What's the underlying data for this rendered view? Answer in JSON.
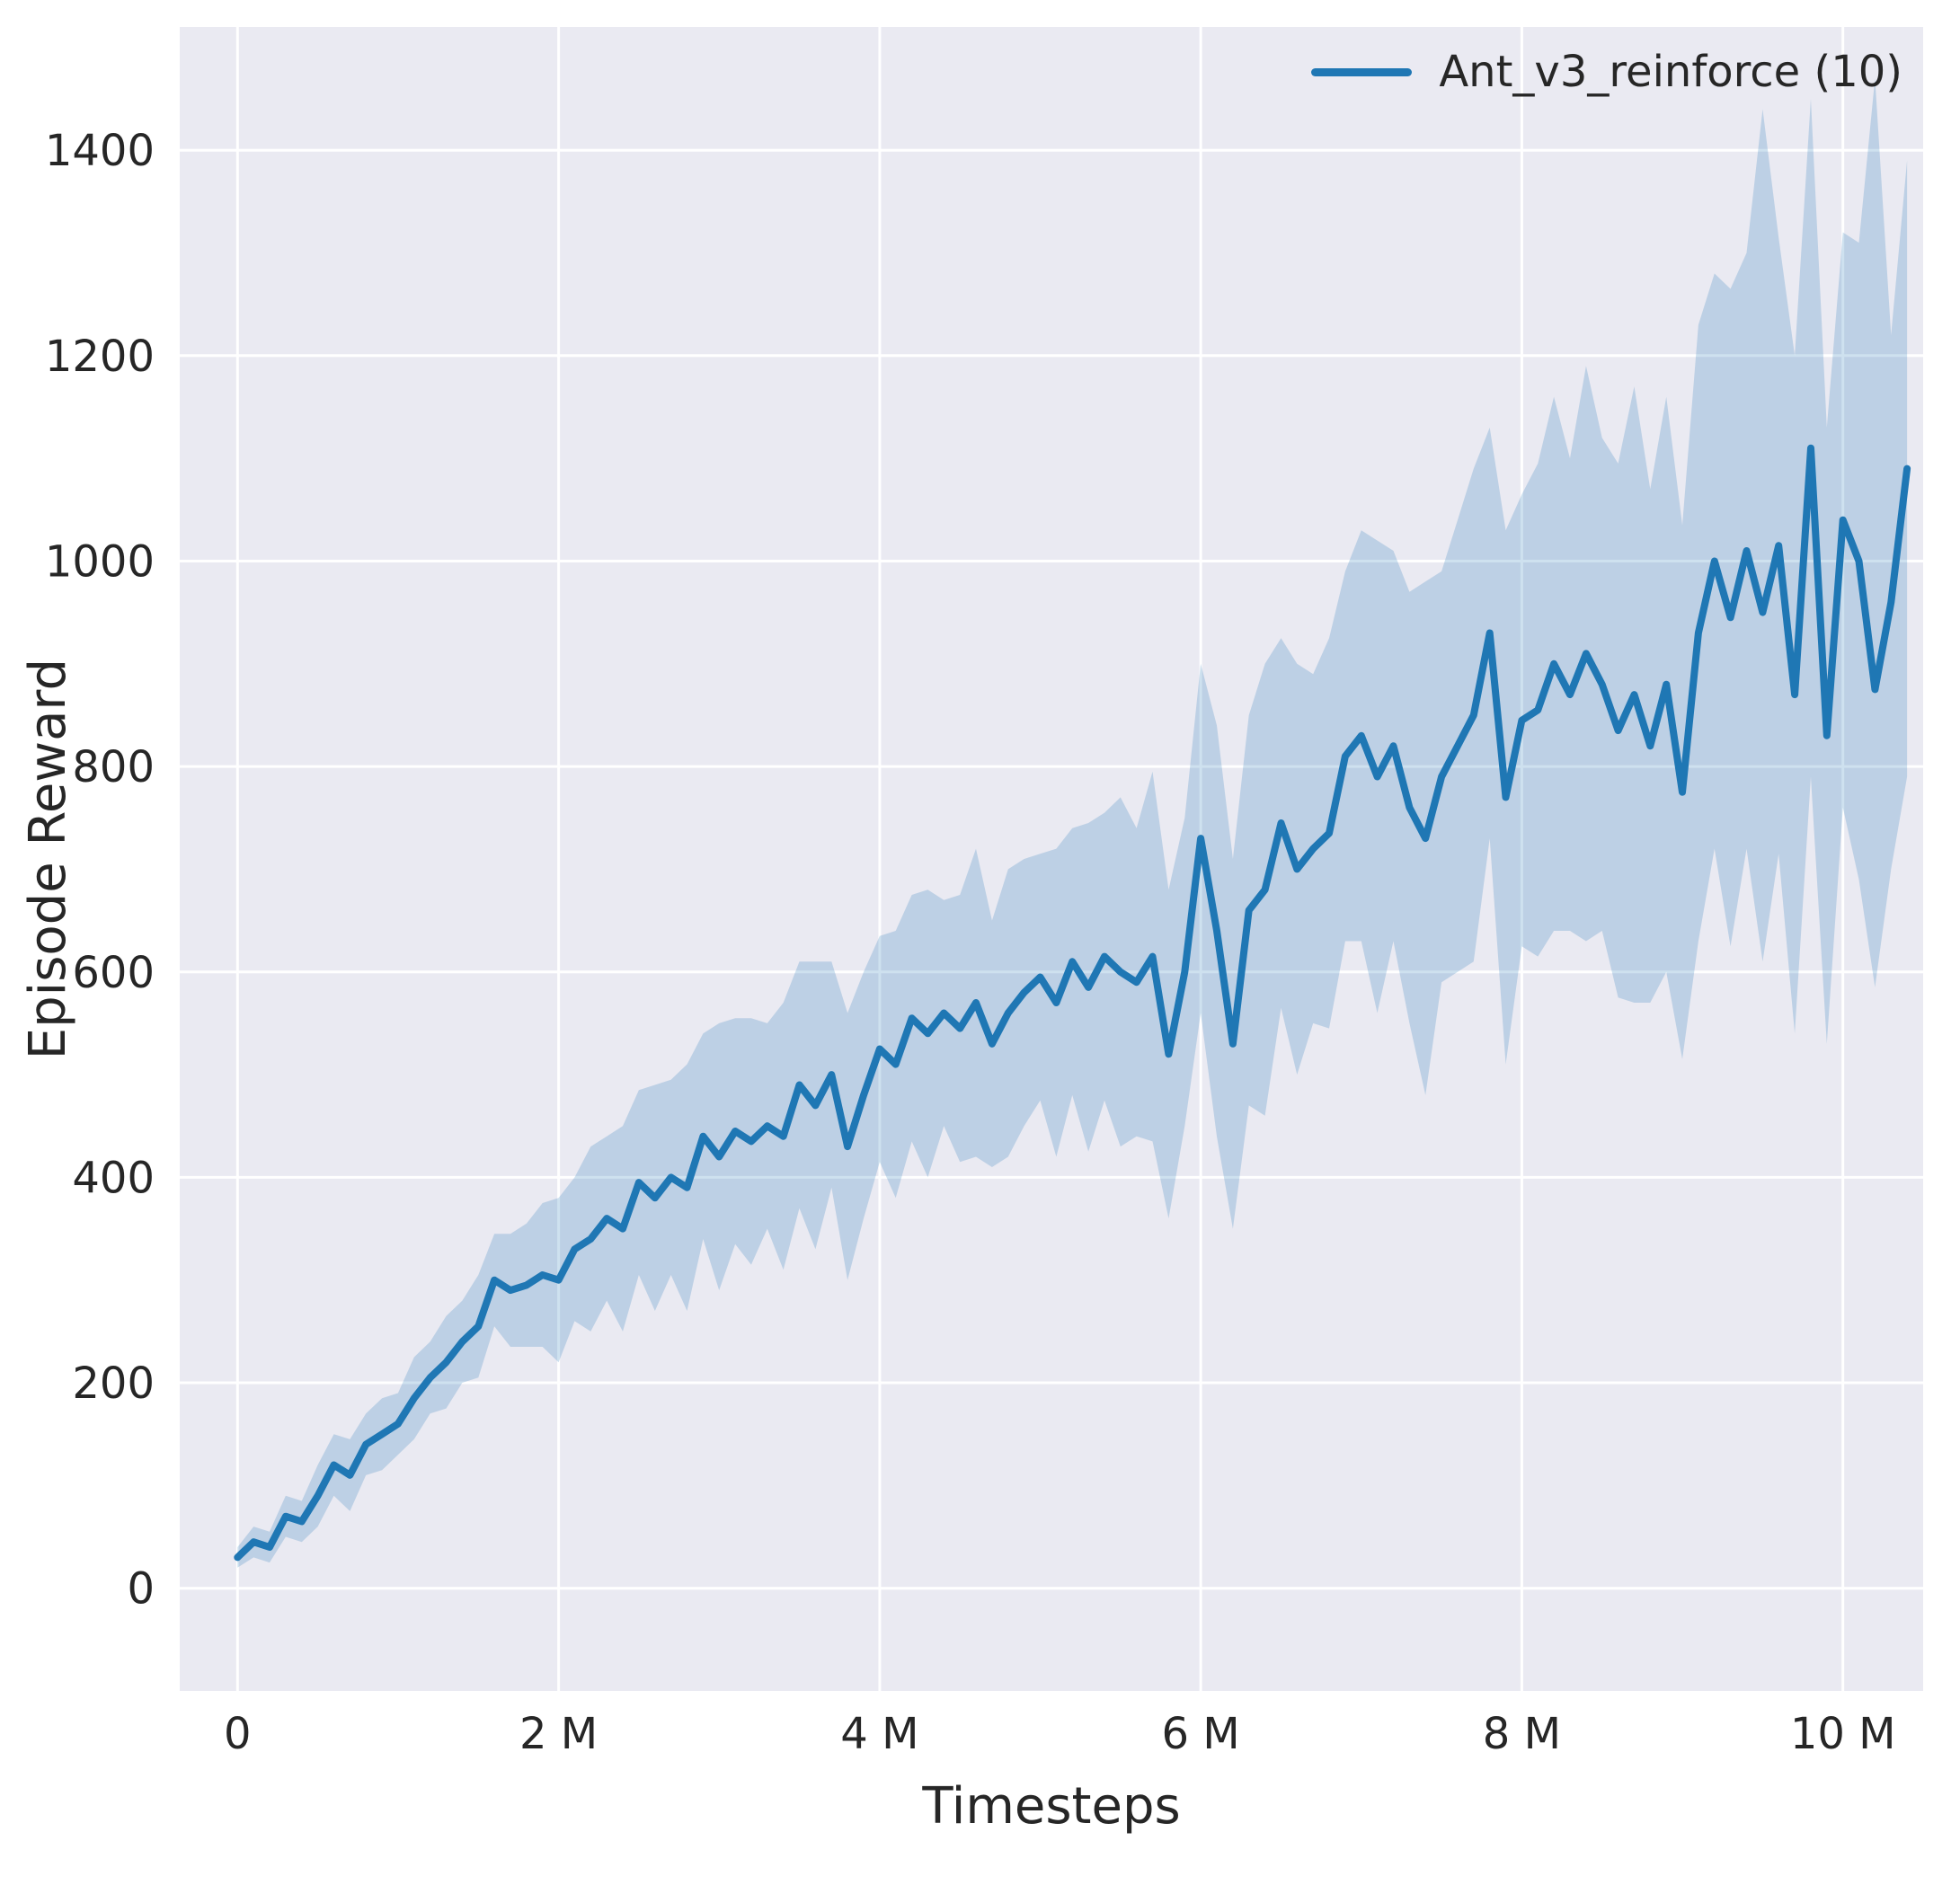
{
  "chart_data": {
    "type": "line",
    "title": "",
    "xlabel": "Timesteps",
    "ylabel": "Episode Reward",
    "grid": true,
    "legend": {
      "position": "upper right",
      "entries": [
        "Ant_v3_reinforce (10)"
      ]
    },
    "panel_color": "#eaeaf2",
    "grid_color": "#ffffff",
    "text_color": "#262626",
    "xlim": [
      -0.36,
      10.5
    ],
    "ylim": [
      -100,
      1520
    ],
    "x_ticks": {
      "values": [
        0,
        2,
        4,
        6,
        8,
        10
      ],
      "labels": [
        "0",
        "2 M",
        "4 M",
        "6 M",
        "8 M",
        "10 M"
      ]
    },
    "y_ticks": {
      "values": [
        0,
        200,
        400,
        600,
        800,
        1000,
        1200,
        1400
      ],
      "labels": [
        "0",
        "200",
        "400",
        "600",
        "800",
        "1000",
        "1200",
        "1400"
      ]
    },
    "series": [
      {
        "name": "Ant_v3_reinforce (10)",
        "color": "#1f77b4",
        "band_color": "#1f77b4",
        "band_opacity": 0.22,
        "x": [
          0,
          0.1,
          0.2,
          0.3,
          0.4,
          0.5,
          0.6,
          0.7,
          0.8,
          0.9,
          1,
          1.1,
          1.2,
          1.3,
          1.4,
          1.5,
          1.6,
          1.7,
          1.8,
          1.9,
          2,
          2.1,
          2.2,
          2.3,
          2.4,
          2.5,
          2.6,
          2.7,
          2.8,
          2.9,
          3,
          3.1,
          3.2,
          3.3,
          3.4,
          3.5,
          3.6,
          3.7,
          3.8,
          3.9,
          4,
          4.1,
          4.2,
          4.3,
          4.4,
          4.5,
          4.6,
          4.7,
          4.8,
          4.9,
          5,
          5.1,
          5.2,
          5.3,
          5.4,
          5.5,
          5.6,
          5.7,
          5.8,
          5.9,
          6,
          6.1,
          6.2,
          6.3,
          6.4,
          6.5,
          6.6,
          6.7,
          6.8,
          6.9,
          7,
          7.1,
          7.2,
          7.3,
          7.4,
          7.5,
          7.6,
          7.7,
          7.8,
          7.9,
          8,
          8.1,
          8.2,
          8.3,
          8.4,
          8.5,
          8.6,
          8.7,
          8.8,
          8.9,
          9,
          9.1,
          9.2,
          9.3,
          9.4,
          9.5,
          9.6,
          9.7,
          9.8,
          9.9,
          10,
          10.1,
          10.2,
          10.3,
          10.4
        ],
        "mean": [
          30,
          45,
          40,
          70,
          65,
          90,
          120,
          110,
          140,
          150,
          160,
          185,
          205,
          220,
          240,
          255,
          300,
          290,
          295,
          305,
          300,
          330,
          340,
          360,
          350,
          395,
          380,
          400,
          390,
          440,
          420,
          445,
          435,
          450,
          440,
          490,
          470,
          500,
          430,
          480,
          525,
          510,
          555,
          540,
          560,
          545,
          570,
          530,
          560,
          580,
          595,
          570,
          610,
          585,
          615,
          600,
          590,
          615,
          520,
          600,
          730,
          640,
          530,
          660,
          680,
          745,
          700,
          720,
          735,
          810,
          830,
          790,
          820,
          760,
          730,
          790,
          820,
          850,
          930,
          770,
          845,
          855,
          900,
          870,
          910,
          880,
          835,
          870,
          820,
          880,
          775,
          930,
          1000,
          945,
          1010,
          950,
          1015,
          870,
          1110,
          830,
          1040,
          1000,
          875,
          960,
          1090
        ],
        "lower": [
          20,
          30,
          25,
          50,
          45,
          60,
          90,
          75,
          110,
          115,
          130,
          145,
          170,
          175,
          200,
          205,
          255,
          235,
          235,
          235,
          220,
          260,
          250,
          280,
          250,
          305,
          270,
          305,
          270,
          340,
          290,
          335,
          315,
          350,
          310,
          370,
          330,
          390,
          300,
          360,
          415,
          380,
          435,
          400,
          450,
          415,
          420,
          410,
          420,
          450,
          475,
          420,
          480,
          425,
          475,
          430,
          440,
          435,
          360,
          450,
          560,
          440,
          350,
          470,
          460,
          565,
          500,
          550,
          545,
          630,
          630,
          560,
          630,
          550,
          480,
          590,
          600,
          610,
          730,
          510,
          625,
          615,
          640,
          640,
          630,
          640,
          575,
          570,
          570,
          600,
          515,
          630,
          720,
          625,
          720,
          610,
          715,
          540,
          790,
          530,
          760,
          690,
          585,
          700,
          790
        ],
        "upper": [
          40,
          60,
          55,
          90,
          85,
          120,
          150,
          145,
          170,
          185,
          190,
          225,
          240,
          265,
          280,
          305,
          345,
          345,
          355,
          375,
          380,
          400,
          430,
          440,
          450,
          485,
          490,
          495,
          510,
          540,
          550,
          555,
          555,
          550,
          570,
          610,
          610,
          610,
          560,
          600,
          635,
          640,
          675,
          680,
          670,
          675,
          720,
          650,
          700,
          710,
          715,
          720,
          740,
          745,
          755,
          770,
          740,
          795,
          680,
          750,
          900,
          840,
          710,
          850,
          900,
          925,
          900,
          890,
          925,
          990,
          1030,
          1020,
          1010,
          970,
          980,
          990,
          1040,
          1090,
          1130,
          1030,
          1065,
          1095,
          1160,
          1100,
          1190,
          1120,
          1095,
          1170,
          1070,
          1160,
          1035,
          1230,
          1280,
          1265,
          1300,
          1440,
          1315,
          1200,
          1450,
          1130,
          1320,
          1310,
          1470,
          1220,
          1390
        ]
      }
    ]
  }
}
